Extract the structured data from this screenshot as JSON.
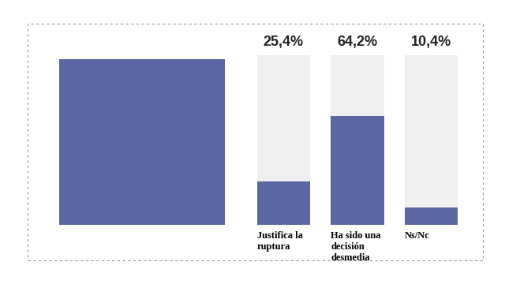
{
  "chart_data": {
    "type": "bar",
    "categories": [
      "Justifica la\nruptura",
      "Ha sido una\ndecisión\ndesmedia",
      "Ns/Nc"
    ],
    "values": [
      25.4,
      64.2,
      10.4
    ],
    "value_labels": [
      "25,4%",
      "64,2%",
      "10,4%"
    ],
    "data_labels": true,
    "color": "#5a67a3",
    "ylim": [
      0,
      100
    ],
    "grid": false,
    "tick_labels": "x"
  }
}
